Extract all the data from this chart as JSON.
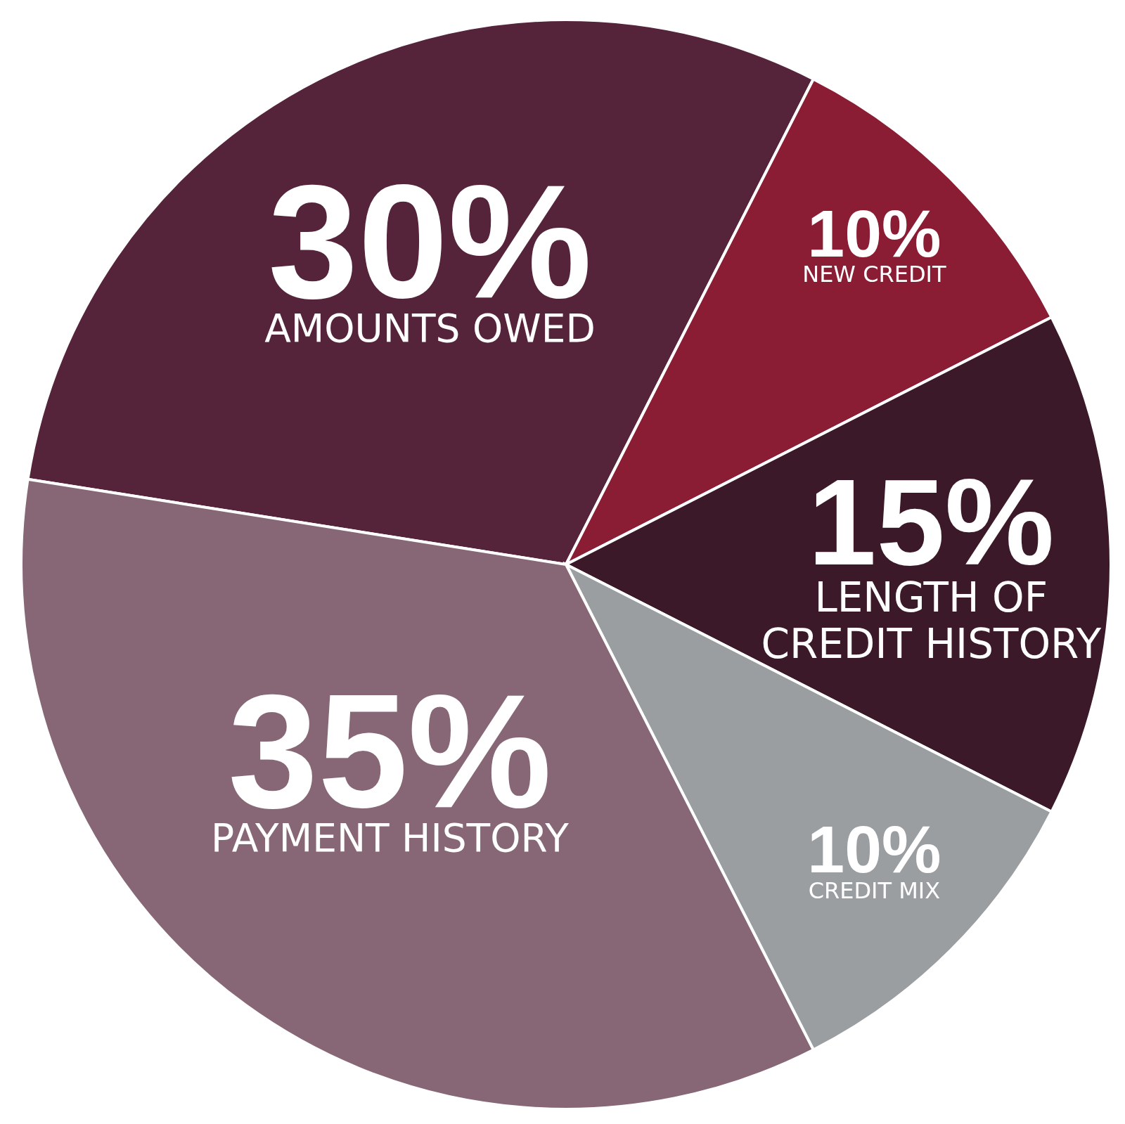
{
  "chart_data": {
    "type": "pie",
    "categories": [
      "AMOUNTS OWED",
      "NEW CREDIT",
      "LENGTH OF CREDIT HISTORY",
      "CREDIT MIX",
      "PAYMENT HISTORY"
    ],
    "values": [
      30,
      10,
      15,
      10,
      35
    ],
    "value_labels": [
      "30%",
      "10%",
      "15%",
      "10%",
      "35%"
    ],
    "colors": [
      "#55233a",
      "#8a1c33",
      "#3b1928",
      "#9b9ea1",
      "#876775"
    ],
    "legend": false
  }
}
